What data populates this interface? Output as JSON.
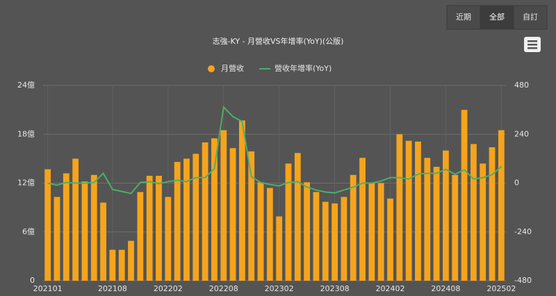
{
  "controls": [
    "近期",
    "全部",
    "自訂"
  ],
  "chart_data": {
    "type": "bar",
    "title": "志強-KY - 月營收VS年增率(YoY)(公版)",
    "categories": [
      "202101",
      null,
      null,
      null,
      null,
      null,
      null,
      "202108",
      null,
      null,
      null,
      null,
      null,
      "202202",
      null,
      null,
      null,
      null,
      null,
      "202208",
      null,
      null,
      null,
      null,
      null,
      "202302",
      null,
      null,
      null,
      null,
      null,
      "202308",
      null,
      null,
      null,
      null,
      null,
      "202402",
      null,
      null,
      null,
      null,
      null,
      "202408",
      null,
      null,
      null,
      null,
      null,
      "202502"
    ],
    "series": [
      {
        "name": "月營收",
        "type": "bar",
        "color": "#f5a41c",
        "values": [
          13.7,
          10.3,
          13.2,
          15.0,
          12.2,
          13.0,
          9.6,
          3.8,
          3.8,
          4.9,
          10.9,
          12.9,
          12.9,
          10.3,
          14.6,
          15.0,
          15.6,
          17.0,
          17.5,
          18.5,
          16.3,
          19.7,
          15.9,
          12.1,
          11.4,
          7.9,
          14.4,
          15.7,
          12.1,
          10.9,
          9.7,
          9.5,
          10.3,
          13.0,
          15.1,
          12.0,
          12.0,
          10.1,
          18.0,
          17.2,
          17.1,
          15.1,
          14.0,
          16.0,
          13.0,
          21.0,
          16.8,
          14.4,
          16.4,
          18.5
        ]
      },
      {
        "name": "營收年增率(YoY)",
        "type": "line",
        "axis": "y2",
        "color": "#4caf6a",
        "values": [
          0,
          -10,
          3,
          0,
          0,
          3,
          48,
          -31,
          -41,
          -51,
          3,
          7,
          -3,
          7,
          14,
          7,
          27,
          27,
          71,
          374,
          327,
          303,
          31,
          3,
          -7,
          -14,
          3,
          7,
          -20,
          -34,
          -44,
          -48,
          -34,
          -20,
          0,
          0,
          10,
          27,
          27,
          20,
          44,
          48,
          48,
          68,
          44,
          65,
          20,
          27,
          41,
          82
        ]
      }
    ],
    "ylim": [
      0,
      24
    ],
    "yticks": [
      {
        "value": 0,
        "label": "0"
      },
      {
        "value": 6,
        "label": "6億"
      },
      {
        "value": 12,
        "label": "12億"
      },
      {
        "value": 18,
        "label": "18億"
      },
      {
        "value": 24,
        "label": "24億"
      }
    ],
    "y2lim": [
      -480,
      480
    ],
    "y2ticks": [
      -480,
      -240,
      0,
      240,
      480
    ],
    "grid": true
  }
}
